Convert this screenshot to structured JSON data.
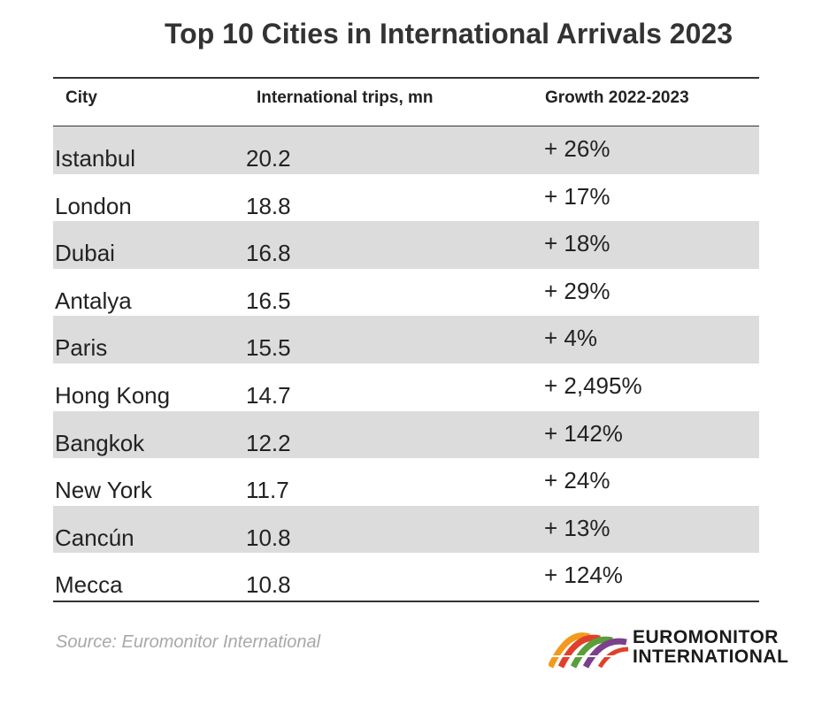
{
  "title": "Top 10 Cities in International Arrivals 2023",
  "columns": {
    "city": "City",
    "trips": "International trips, mn",
    "growth": "Growth 2022-2023"
  },
  "rows": [
    {
      "city": "Istanbul",
      "trips": "20.2",
      "growth": "+ 26%"
    },
    {
      "city": "London",
      "trips": "18.8",
      "growth": "+ 17%"
    },
    {
      "city": "Dubai",
      "trips": "16.8",
      "growth": "+ 18%"
    },
    {
      "city": "Antalya",
      "trips": "16.5",
      "growth": "+ 29%"
    },
    {
      "city": "Paris",
      "trips": "15.5",
      "growth": "+ 4%"
    },
    {
      "city": "Hong Kong",
      "trips": "14.7",
      "growth": "+ 2,495%"
    },
    {
      "city": "Bangkok",
      "trips": "12.2",
      "growth": "+ 142%"
    },
    {
      "city": "New York",
      "trips": "11.7",
      "growth": "+ 24%"
    },
    {
      "city": "Cancún",
      "trips": "10.8",
      "growth": "+ 13%"
    },
    {
      "city": "Mecca",
      "trips": "10.8",
      "growth": "+ 124%"
    }
  ],
  "source": "Source: Euromonitor International",
  "logo": {
    "line1": "EUROMONITOR",
    "line2": "INTERNATIONAL"
  },
  "colors": {
    "shade": "#dcdcdc",
    "rule": "#333333",
    "source": "#a8a8a8",
    "logo_orange": "#f39a1e",
    "logo_red": "#e0402a",
    "logo_green": "#5a9e3a",
    "logo_purple": "#7b3f8c"
  }
}
